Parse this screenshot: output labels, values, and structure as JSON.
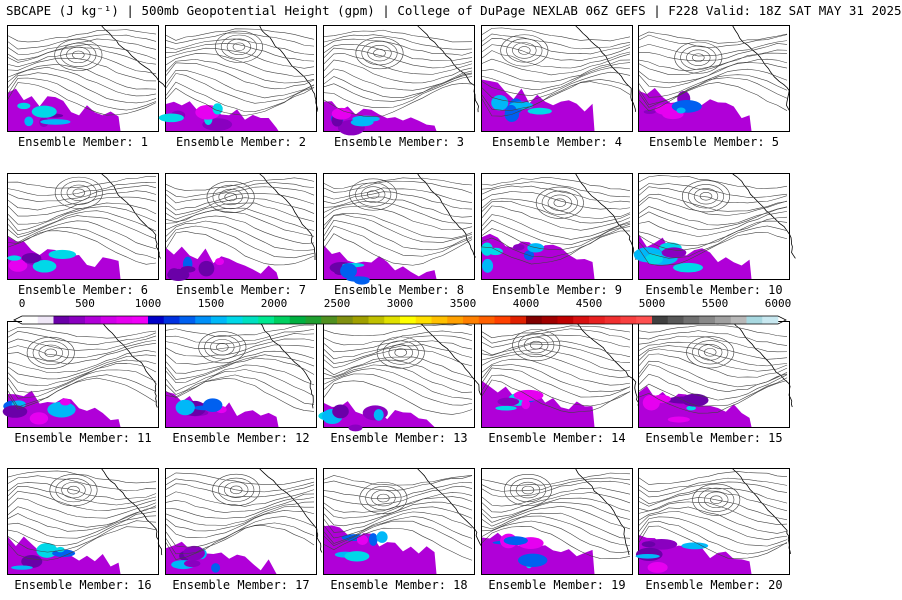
{
  "title": "SBCAPE (J kg⁻¹) | 500mb Geopotential Height (gpm) | College of DuPage NEXLAB 06Z GEFS | F228 Valid: 18Z SAT MAY 31 2025",
  "panels": [
    {
      "member": 1,
      "caption": "Ensemble Member: 1"
    },
    {
      "member": 2,
      "caption": "Ensemble Member: 2"
    },
    {
      "member": 3,
      "caption": "Ensemble Member: 3"
    },
    {
      "member": 4,
      "caption": "Ensemble Member: 4"
    },
    {
      "member": 5,
      "caption": "Ensemble Member: 5"
    },
    {
      "member": 6,
      "caption": "Ensemble Member: 6"
    },
    {
      "member": 7,
      "caption": "Ensemble Member: 7"
    },
    {
      "member": 8,
      "caption": "Ensemble Member: 8"
    },
    {
      "member": 9,
      "caption": "Ensemble Member: 9"
    },
    {
      "member": 10,
      "caption": "Ensemble Member: 10"
    },
    {
      "member": 11,
      "caption": "Ensemble Member: 11"
    },
    {
      "member": 12,
      "caption": "Ensemble Member: 12"
    },
    {
      "member": 13,
      "caption": "Ensemble Member: 13"
    },
    {
      "member": 14,
      "caption": "Ensemble Member: 14"
    },
    {
      "member": 15,
      "caption": "Ensemble Member: 15"
    },
    {
      "member": 16,
      "caption": "Ensemble Member: 16"
    },
    {
      "member": 17,
      "caption": "Ensemble Member: 17"
    },
    {
      "member": 18,
      "caption": "Ensemble Member: 18"
    },
    {
      "member": 19,
      "caption": "Ensemble Member: 19"
    },
    {
      "member": 20,
      "caption": "Ensemble Member: 20"
    }
  ],
  "colorbar": {
    "min": 0,
    "max": 6000,
    "labels": [
      "0",
      "500",
      "1000",
      "1500",
      "2000",
      "2500",
      "3000",
      "3500",
      "4000",
      "4500",
      "5000",
      "5500",
      "6000"
    ],
    "colors": [
      "#ffffff",
      "#efe7f7",
      "#6a00a8",
      "#8a00c0",
      "#b000d8",
      "#d000e8",
      "#e600f0",
      "#f000f8",
      "#0000c8",
      "#0030e0",
      "#0060f0",
      "#0090f8",
      "#00b8f8",
      "#00d8e8",
      "#00e0c0",
      "#00e890",
      "#00d060",
      "#00b040",
      "#20a030",
      "#509020",
      "#809010",
      "#a0a000",
      "#c0c000",
      "#e0e000",
      "#ffff00",
      "#ffe000",
      "#ffc000",
      "#ffa000",
      "#ff8000",
      "#ff6000",
      "#ff4000",
      "#e02000",
      "#800000",
      "#a00000",
      "#c00000",
      "#d81010",
      "#e82020",
      "#f03030",
      "#f84040",
      "#ff5050",
      "#404040",
      "#585858",
      "#707070",
      "#888888",
      "#a0a0a0",
      "#b8b8b8",
      "#a8d8e0",
      "#c8e8f0"
    ]
  }
}
